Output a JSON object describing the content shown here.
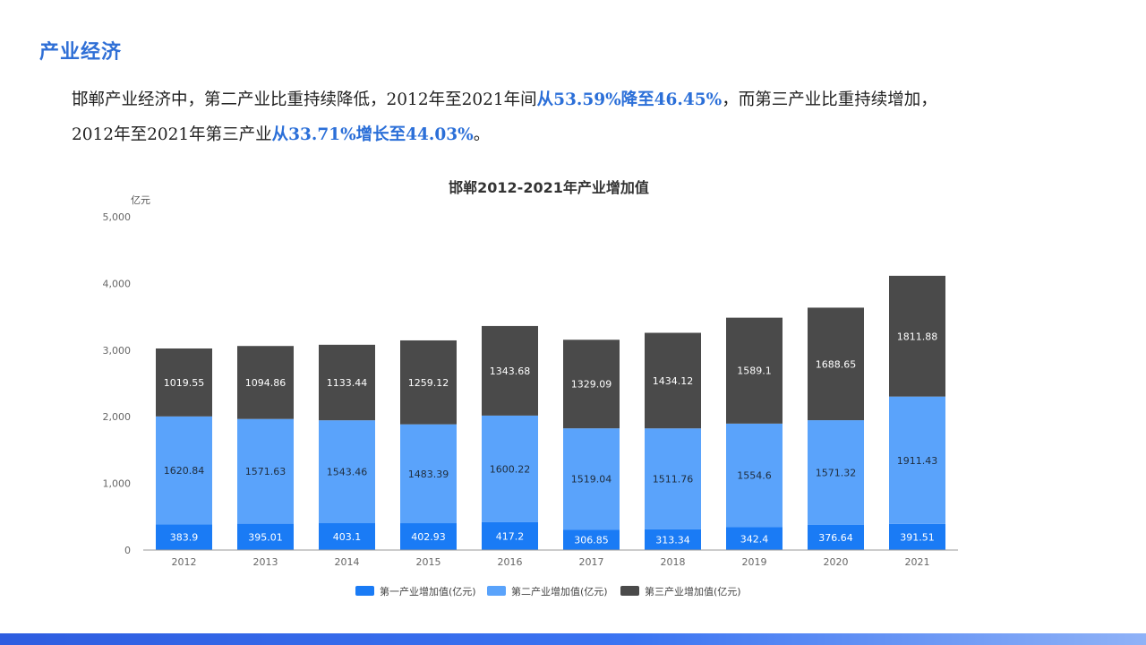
{
  "heading": "产业经济",
  "paragraph": {
    "p1": "邯郸产业经济中，第二产业比重持续降低，2012年至2021年间",
    "h1": "从53.59%降至46.45%",
    "p2": "，而第三产业比重持续增加，",
    "p3": "2012年至2021年第三产业",
    "h2": "从33.71%增长至44.03%",
    "p4": "。"
  },
  "colors": {
    "heading": "#2f6fd6",
    "highlight": "#2b6fd8",
    "series1": "#1a7bf5",
    "series2": "#5aa3fb",
    "series3": "#4a4a4a",
    "bottom_bar": "#3b6ff0"
  },
  "chart_data": {
    "type": "bar",
    "stacked": true,
    "title": "邯郸2012-2021年产业增加值",
    "ylabel": "亿元",
    "ylim": [
      0,
      5000
    ],
    "yticks": [
      0,
      1000,
      2000,
      3000,
      4000,
      5000
    ],
    "ytick_labels": [
      "0",
      "1,000",
      "2,000",
      "3,000",
      "4,000",
      "5,000"
    ],
    "grid": false,
    "legend_position": "bottom",
    "categories": [
      "2012",
      "2013",
      "2014",
      "2015",
      "2016",
      "2017",
      "2018",
      "2019",
      "2020",
      "2021"
    ],
    "series": [
      {
        "name": "第一产业增加值(亿元)",
        "values": [
          383.9,
          395.01,
          403.1,
          402.93,
          417.2,
          306.85,
          313.34,
          342.4,
          376.64,
          391.51
        ]
      },
      {
        "name": "第二产业增加值(亿元)",
        "values": [
          1620.84,
          1571.63,
          1543.46,
          1483.39,
          1600.22,
          1519.04,
          1511.76,
          1554.6,
          1571.32,
          1911.43
        ]
      },
      {
        "name": "第三产业增加值(亿元)",
        "values": [
          1019.55,
          1094.86,
          1133.44,
          1259.12,
          1343.68,
          1329.09,
          1434.12,
          1589.1,
          1688.65,
          1811.88
        ]
      }
    ]
  }
}
